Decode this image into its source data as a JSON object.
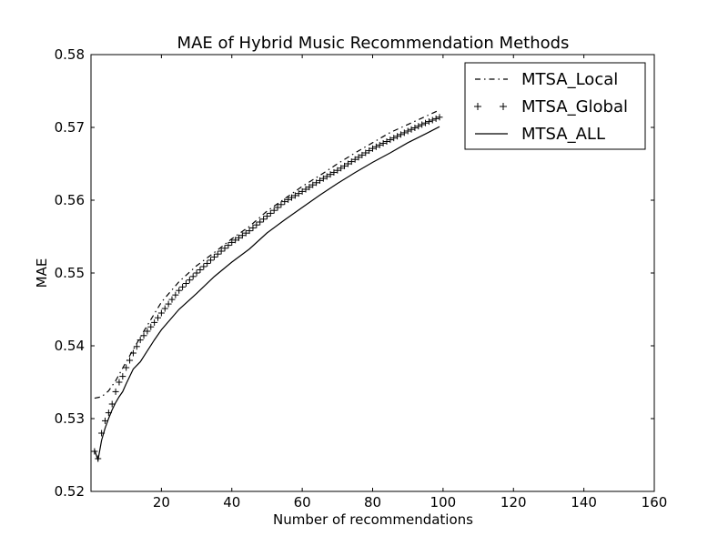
{
  "chart_data": {
    "type": "line",
    "title": "MAE of Hybrid Music Recommendation Methods",
    "xlabel": "Number of recommendations",
    "ylabel": "MAE",
    "xlim": [
      0,
      160
    ],
    "ylim": [
      0.52,
      0.58
    ],
    "xticks": [
      20,
      40,
      60,
      80,
      100,
      120,
      140,
      160
    ],
    "yticks": [
      0.52,
      0.53,
      0.54,
      0.55,
      0.56,
      0.57,
      0.58
    ],
    "xtick_labels": [
      "20",
      "40",
      "60",
      "80",
      "100",
      "120",
      "140",
      "160"
    ],
    "ytick_labels": [
      "0.52",
      "0.53",
      "0.54",
      "0.55",
      "0.56",
      "0.57",
      "0.58"
    ],
    "grid": false,
    "legend_position": "top-right",
    "series": [
      {
        "name": "MTSA_Local",
        "style": "dashdot",
        "x": [
          1,
          3,
          5,
          7,
          10,
          15,
          20,
          25,
          30,
          35,
          40,
          45,
          50,
          55,
          60,
          65,
          70,
          75,
          80,
          85,
          90,
          95,
          99
        ],
        "values": [
          0.5328,
          0.533,
          0.5338,
          0.5352,
          0.5378,
          0.542,
          0.546,
          0.5488,
          0.551,
          0.5528,
          0.5547,
          0.5564,
          0.5585,
          0.5602,
          0.5619,
          0.5634,
          0.565,
          0.5665,
          0.5679,
          0.5693,
          0.5704,
          0.5715,
          0.5724
        ]
      },
      {
        "name": "MTSA_Global",
        "style": "plus-markers",
        "x": [
          1,
          2,
          3,
          4,
          5,
          6,
          7,
          8,
          9,
          10,
          12,
          14,
          16,
          18,
          20,
          25,
          30,
          35,
          40,
          45,
          50,
          55,
          60,
          65,
          70,
          75,
          80,
          85,
          90,
          95,
          99
        ],
        "values": [
          0.5255,
          0.5245,
          0.528,
          0.5297,
          0.5308,
          0.532,
          0.5337,
          0.535,
          0.5358,
          0.537,
          0.539,
          0.5408,
          0.542,
          0.5432,
          0.5445,
          0.5476,
          0.55,
          0.5522,
          0.5542,
          0.5558,
          0.5578,
          0.5598,
          0.5612,
          0.5627,
          0.5641,
          0.5656,
          0.5671,
          0.5683,
          0.5695,
          0.5706,
          0.5714
        ]
      },
      {
        "name": "MTSA_ALL",
        "style": "solid",
        "x": [
          1,
          2,
          3,
          4,
          5,
          6,
          7,
          8,
          9,
          10,
          12,
          14,
          16,
          18,
          20,
          25,
          30,
          35,
          40,
          45,
          50,
          55,
          60,
          65,
          70,
          75,
          80,
          85,
          90,
          95,
          99
        ],
        "values": [
          0.5257,
          0.5243,
          0.527,
          0.5287,
          0.53,
          0.5312,
          0.5322,
          0.533,
          0.5337,
          0.5348,
          0.5368,
          0.5378,
          0.5393,
          0.5408,
          0.5422,
          0.545,
          0.5472,
          0.5495,
          0.5515,
          0.5533,
          0.5555,
          0.5573,
          0.559,
          0.5607,
          0.5623,
          0.5638,
          0.5652,
          0.5665,
          0.5679,
          0.5691,
          0.5701
        ]
      }
    ]
  }
}
